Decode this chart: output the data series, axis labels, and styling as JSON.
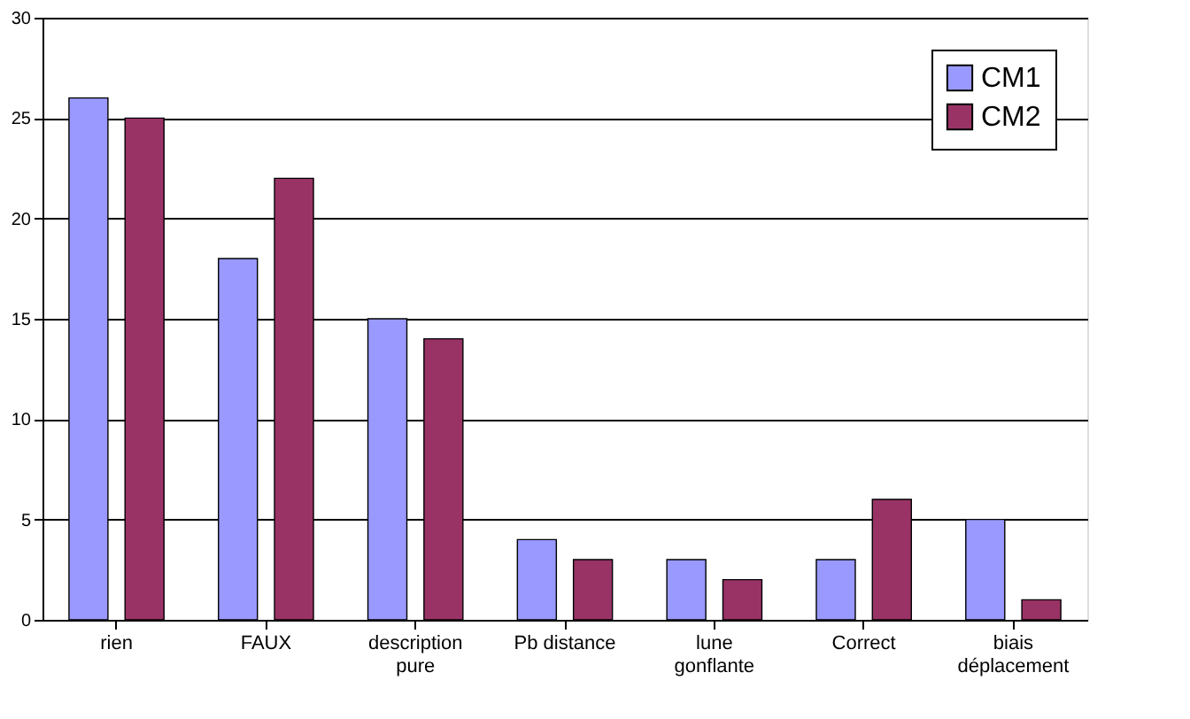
{
  "chart_data": {
    "type": "bar",
    "categories": [
      "rien",
      "FAUX",
      "description pure",
      "Pb distance",
      "lune gonflante",
      "Correct",
      "biais déplacement"
    ],
    "series": [
      {
        "name": "CM1",
        "color": "#9999ff",
        "values": [
          26,
          18,
          15,
          4,
          3,
          3,
          5
        ]
      },
      {
        "name": "CM2",
        "color": "#993366",
        "values": [
          25,
          22,
          14,
          3,
          2,
          6,
          1
        ]
      }
    ],
    "ylim": [
      0,
      30
    ],
    "yticks": [
      0,
      5,
      10,
      15,
      20,
      25,
      30
    ],
    "grid": "y",
    "legend": "top right"
  }
}
